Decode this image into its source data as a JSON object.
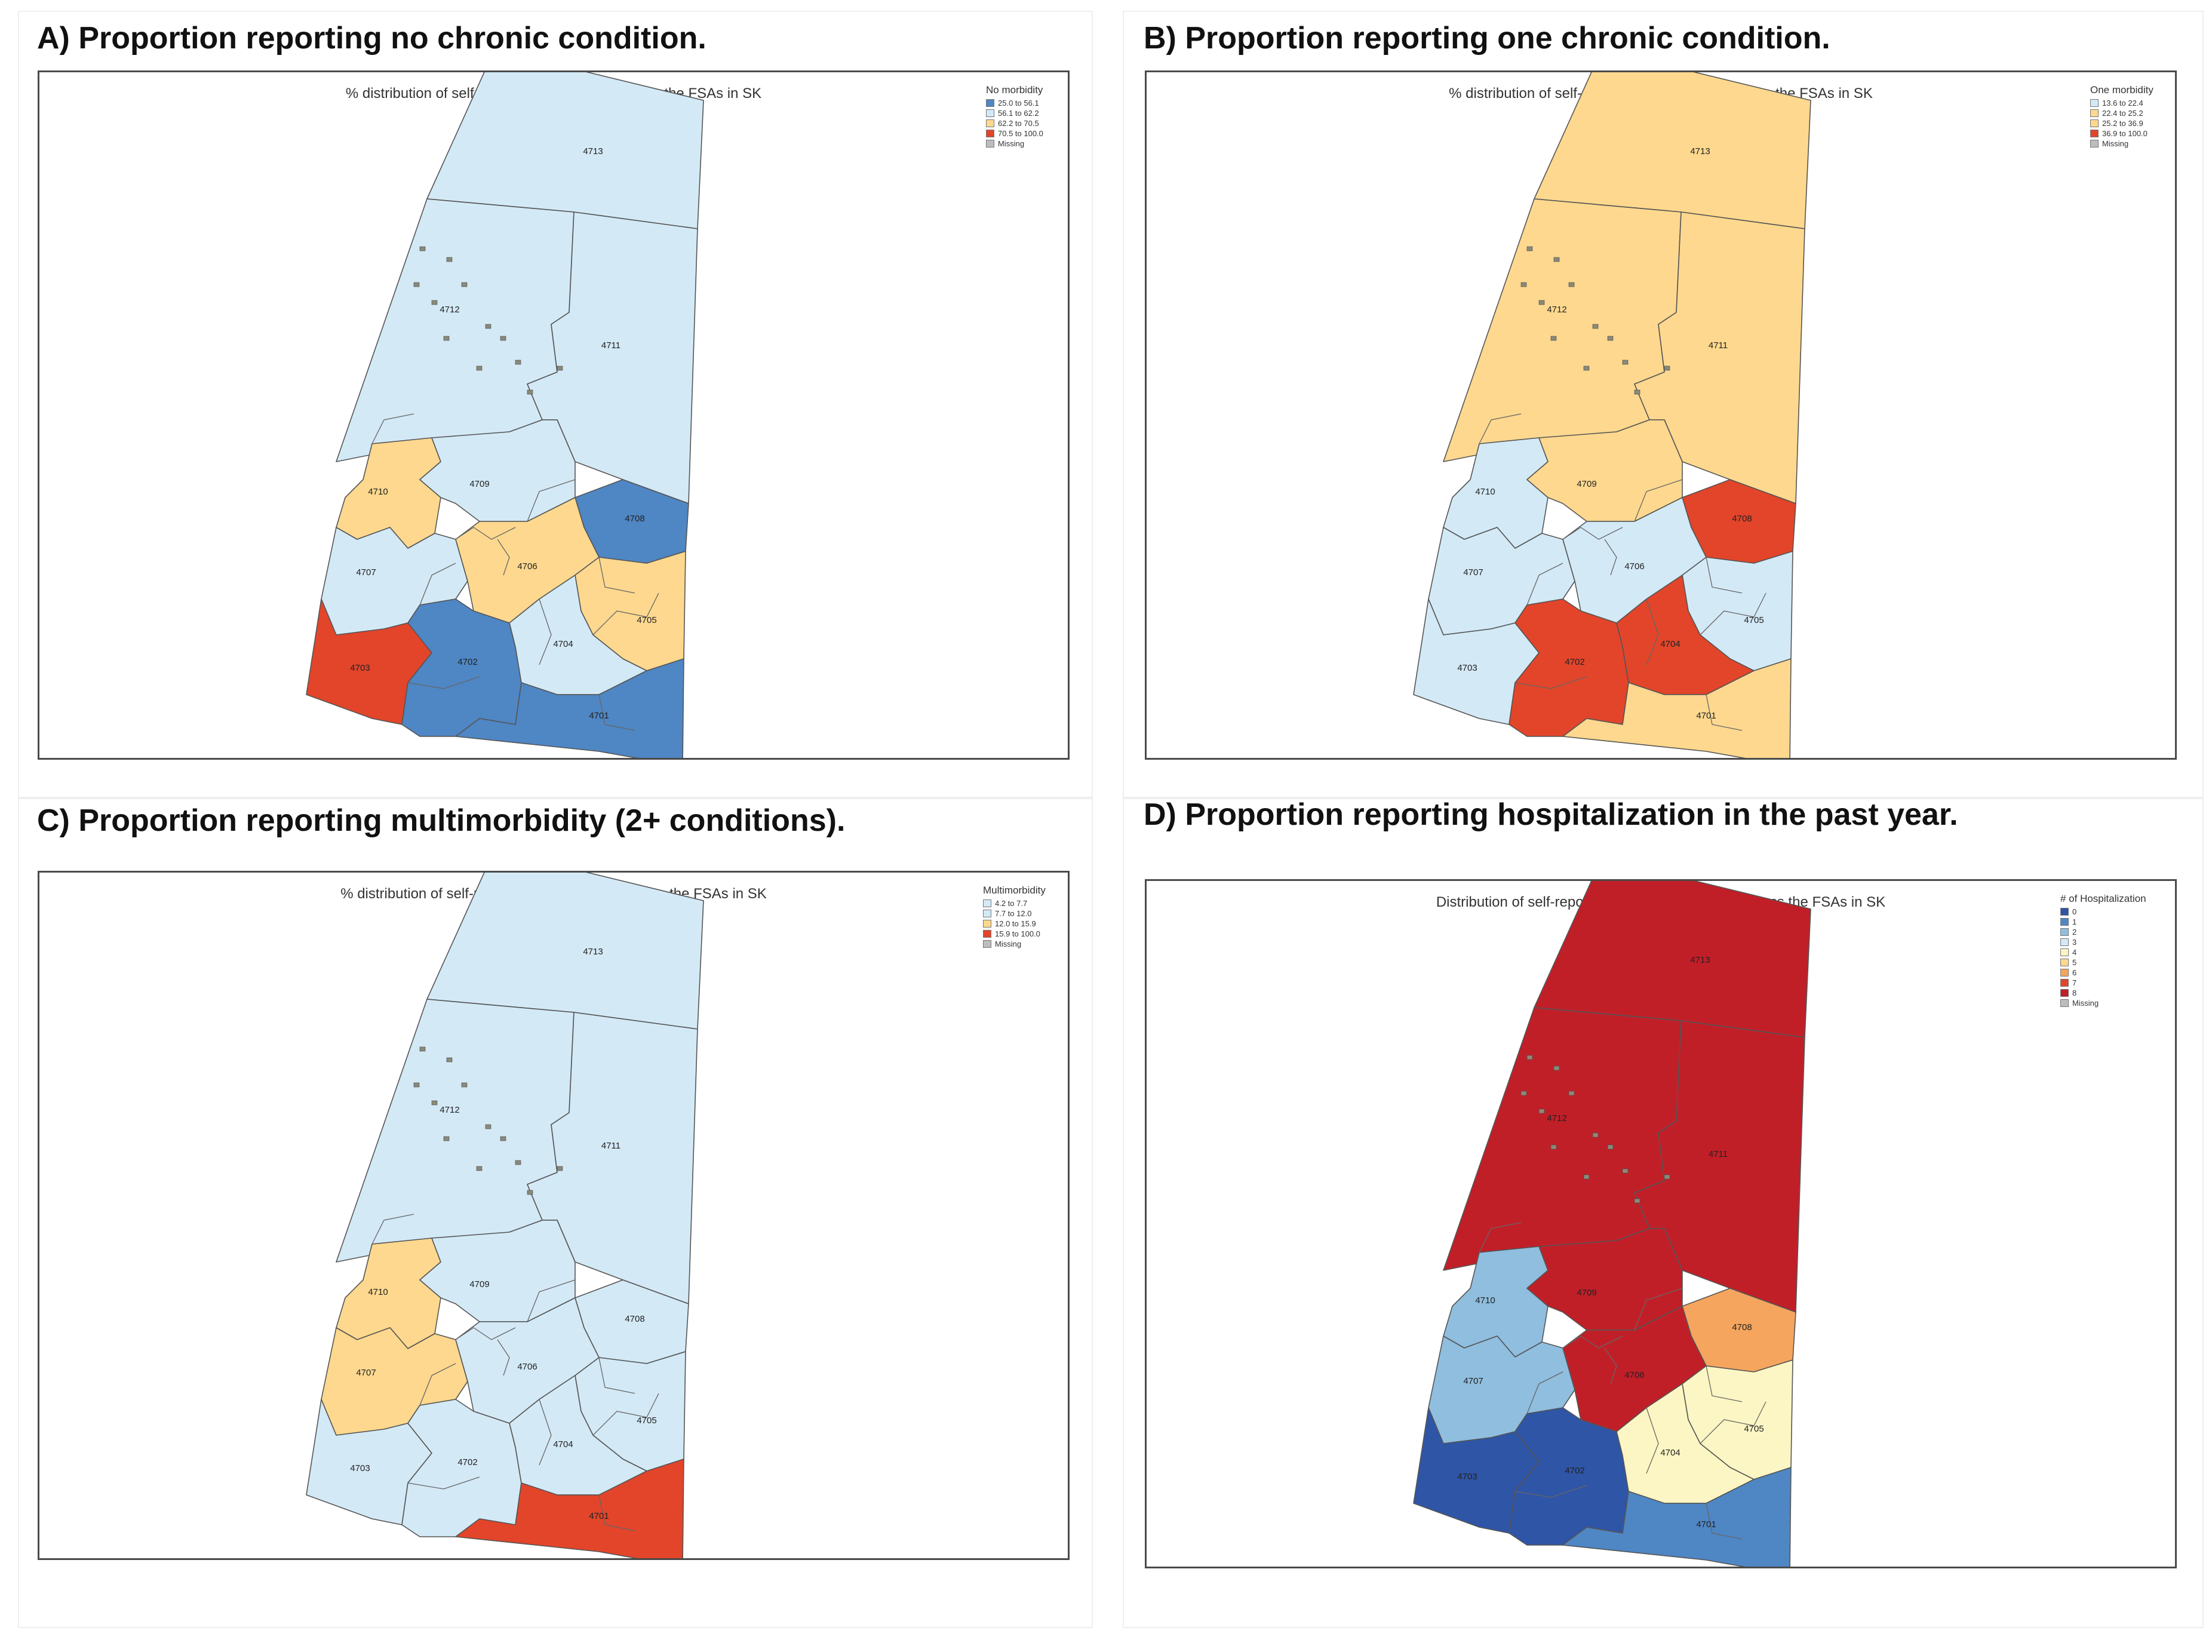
{
  "colors": {
    "lightblue": "#d3e9f6",
    "midblue": "#8fbedf",
    "blue": "#4f86c4",
    "darkblue": "#2f55a6",
    "yellow": "#fdd88e",
    "paleyellow": "#fbf6c3",
    "orange": "#f5a55e",
    "red": "#e2452a",
    "darkred": "#c11f28",
    "missing": "#bdbdbd"
  },
  "fsa_labels": [
    "4713",
    "4712",
    "4711",
    "4710",
    "4709",
    "4708",
    "4707",
    "4706",
    "4705",
    "4703",
    "4702",
    "4704",
    "4701"
  ],
  "panels": [
    {
      "heading": "A) Proportion reporting no chronic condition.",
      "map_title": "% distribution of self-reported no morbidity across the FSAs in SK",
      "legend_title": "No morbidity",
      "legend_items": [
        {
          "label": "25.0 to 56.1",
          "color": "blue"
        },
        {
          "label": "56.1 to 62.2",
          "color": "lightblue"
        },
        {
          "label": "62.2 to 70.5",
          "color": "yellow"
        },
        {
          "label": "70.5 to 100.0",
          "color": "red"
        },
        {
          "label": "Missing",
          "color": "missing"
        }
      ],
      "fills": {
        "4713": "lightblue",
        "4712": "lightblue",
        "4711": "lightblue",
        "4710": "yellow",
        "4709": "lightblue",
        "4708": "blue",
        "4707": "lightblue",
        "4706": "yellow",
        "4705": "yellow",
        "4703": "red",
        "4702": "blue",
        "4704": "lightblue",
        "4701": "blue"
      }
    },
    {
      "heading": "B) Proportion reporting one chronic condition.",
      "map_title": "% distribution of self-reported one morbidity across the FSAs in SK",
      "legend_title": "One morbidity",
      "legend_items": [
        {
          "label": "13.6 to 22.4",
          "color": "lightblue"
        },
        {
          "label": "22.4 to 25.2",
          "color": "yellow"
        },
        {
          "label": "25.2 to 36.9",
          "color": "yellow"
        },
        {
          "label": "36.9 to 100.0",
          "color": "red"
        },
        {
          "label": "Missing",
          "color": "missing"
        }
      ],
      "fills": {
        "4713": "yellow",
        "4712": "yellow",
        "4711": "yellow",
        "4710": "lightblue",
        "4709": "yellow",
        "4708": "red",
        "4707": "lightblue",
        "4706": "lightblue",
        "4705": "lightblue",
        "4703": "lightblue",
        "4702": "red",
        "4704": "red",
        "4701": "yellow"
      }
    },
    {
      "heading": "C) Proportion reporting multimorbidity (2+ conditions).",
      "map_title": "% distribution of self-reported multimorbidity across the FSAs in SK",
      "legend_title": "Multimorbidity",
      "legend_items": [
        {
          "label": "4.2 to 7.7",
          "color": "lightblue"
        },
        {
          "label": "7.7 to 12.0",
          "color": "lightblue"
        },
        {
          "label": "12.0 to 15.9",
          "color": "yellow"
        },
        {
          "label": "15.9 to 100.0",
          "color": "red"
        },
        {
          "label": "Missing",
          "color": "missing"
        }
      ],
      "fills": {
        "4713": "lightblue",
        "4712": "lightblue",
        "4711": "lightblue",
        "4710": "yellow",
        "4709": "lightblue",
        "4708": "lightblue",
        "4707": "yellow",
        "4706": "lightblue",
        "4705": "lightblue",
        "4703": "lightblue",
        "4702": "lightblue",
        "4704": "lightblue",
        "4701": "red"
      }
    },
    {
      "heading": "D) Proportion reporting hospitalization in the past year.",
      "map_title": "Distribution of self-reported # of hospitalizations across the FSAs in SK",
      "legend_title": "# of Hospitalization",
      "legend_items": [
        {
          "label": "0",
          "color": "darkblue"
        },
        {
          "label": "1",
          "color": "blue"
        },
        {
          "label": "2",
          "color": "midblue"
        },
        {
          "label": "3",
          "color": "lightblue"
        },
        {
          "label": "4",
          "color": "paleyellow"
        },
        {
          "label": "5",
          "color": "yellow"
        },
        {
          "label": "6",
          "color": "orange"
        },
        {
          "label": "7",
          "color": "red"
        },
        {
          "label": "8",
          "color": "darkred"
        },
        {
          "label": "Missing",
          "color": "missing"
        }
      ],
      "fills": {
        "4713": "darkred",
        "4712": "darkred",
        "4711": "darkred",
        "4710": "midblue",
        "4709": "darkred",
        "4708": "orange",
        "4707": "midblue",
        "4706": "darkred",
        "4705": "paleyellow",
        "4703": "darkblue",
        "4702": "darkblue",
        "4704": "paleyellow",
        "4701": "blue"
      }
    }
  ]
}
